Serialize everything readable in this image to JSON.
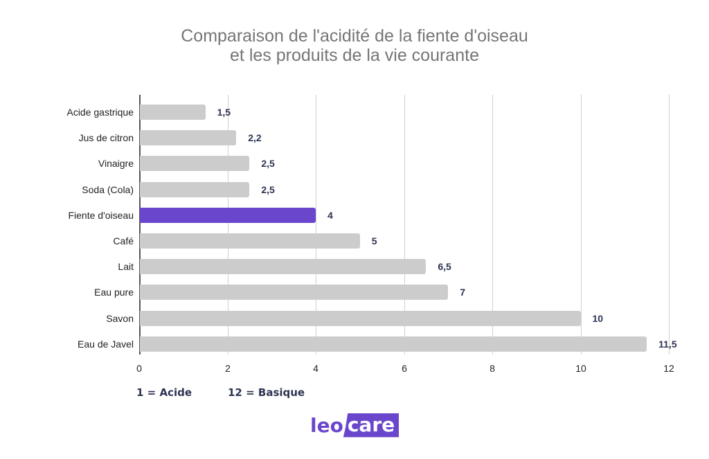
{
  "chart_data": {
    "type": "bar",
    "orientation": "horizontal",
    "title": "Comparaison de l'acidité de la fiente d'oiseau et les produits de la vie courante",
    "title_lines": [
      "Comparaison de l'acidité de la fiente d'oiseau",
      "et les produits de la vie courante"
    ],
    "categories": [
      "Acide gastrique",
      "Jus de citron",
      "Vinaigre",
      "Soda (Cola)",
      "Fiente d'oiseau",
      "Café",
      "Lait",
      "Eau pure",
      "Savon",
      "Eau de Javel"
    ],
    "values": [
      1.5,
      2.2,
      2.5,
      2.5,
      4,
      5,
      6.5,
      7,
      10,
      11.5
    ],
    "value_labels": [
      "1,5",
      "2,2",
      "2,5",
      "2,5",
      "4",
      "5",
      "6,5",
      "7",
      "10",
      "11,5"
    ],
    "highlight_index": 4,
    "xlabel": "",
    "ylabel": "",
    "xlim": [
      0,
      12
    ],
    "xticks": [
      "0",
      "2",
      "4",
      "6",
      "8",
      "10",
      "12"
    ],
    "grid": true,
    "colors": {
      "default": "#cccccc",
      "highlight": "#6a46cc",
      "value_label": "#2d3352"
    }
  },
  "legend": {
    "acid": "1 = Acide",
    "basic": "12 = Basique"
  },
  "logo": {
    "part1": "leo",
    "part2": "care"
  }
}
